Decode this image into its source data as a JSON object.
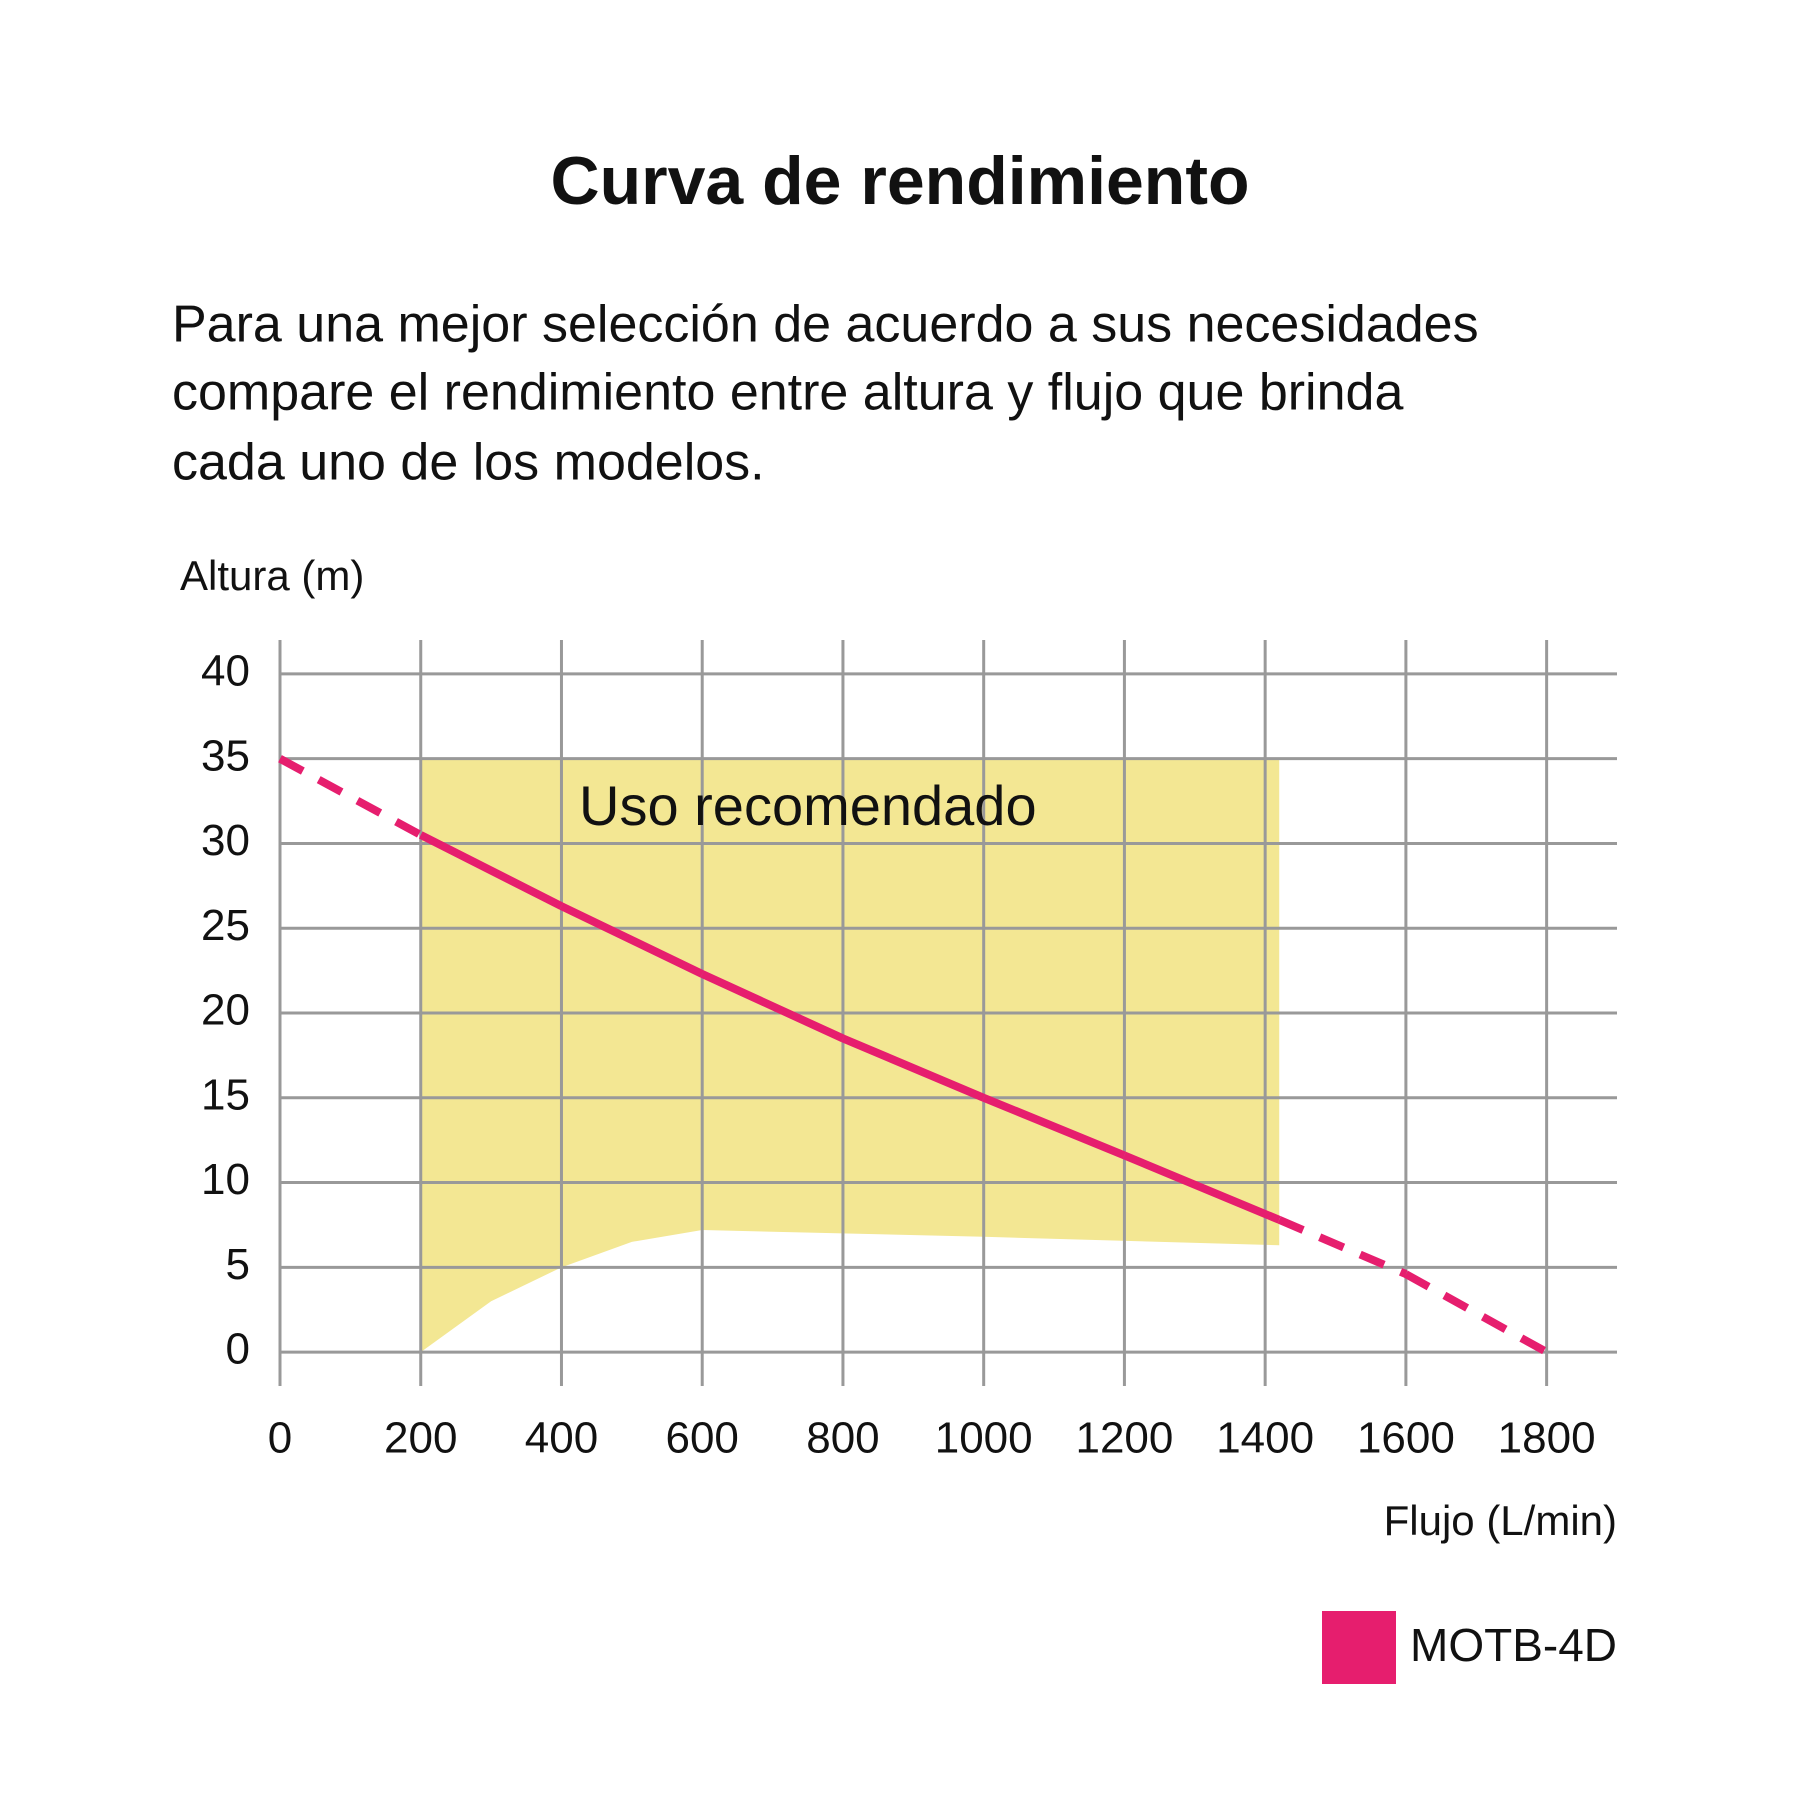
{
  "chart_data": {
    "type": "line",
    "title": "Curva de rendimiento",
    "subtitle": [
      "Para una mejor selección de acuerdo a sus necesidades",
      "compare el rendimiento entre altura y flujo que brinda",
      "cada uno de los modelos."
    ],
    "y_label": "Altura (m)",
    "x_label": "Flujo (L/min)",
    "x": [
      0,
      200,
      400,
      600,
      800,
      1000,
      1200,
      1420,
      1600,
      1800
    ],
    "series": [
      {
        "name": "MOTB-4D",
        "color": "#e61e6e",
        "values": [
          35,
          30.5,
          26.3,
          22.3,
          18.5,
          15,
          11.6,
          7.8,
          4.6,
          0
        ]
      }
    ],
    "band": {
      "label": "Uso recomendado",
      "color": "#f3e793",
      "x": [
        200,
        300,
        400,
        500,
        600,
        1000,
        1420
      ],
      "upper": [
        35,
        35,
        35,
        35,
        35,
        35,
        35
      ],
      "lower": [
        0,
        3,
        5,
        6.5,
        7.2,
        6.8,
        6.3
      ]
    },
    "xlim": [
      0,
      1900
    ],
    "ylim": [
      -2,
      42
    ],
    "xticks": [
      0,
      200,
      400,
      600,
      800,
      1000,
      1200,
      1400,
      1600,
      1800
    ],
    "yticks": [
      0,
      5,
      10,
      15,
      20,
      25,
      30,
      35,
      40
    ],
    "grid": true,
    "grid_color": "#999999",
    "legend": "bottom-right"
  }
}
